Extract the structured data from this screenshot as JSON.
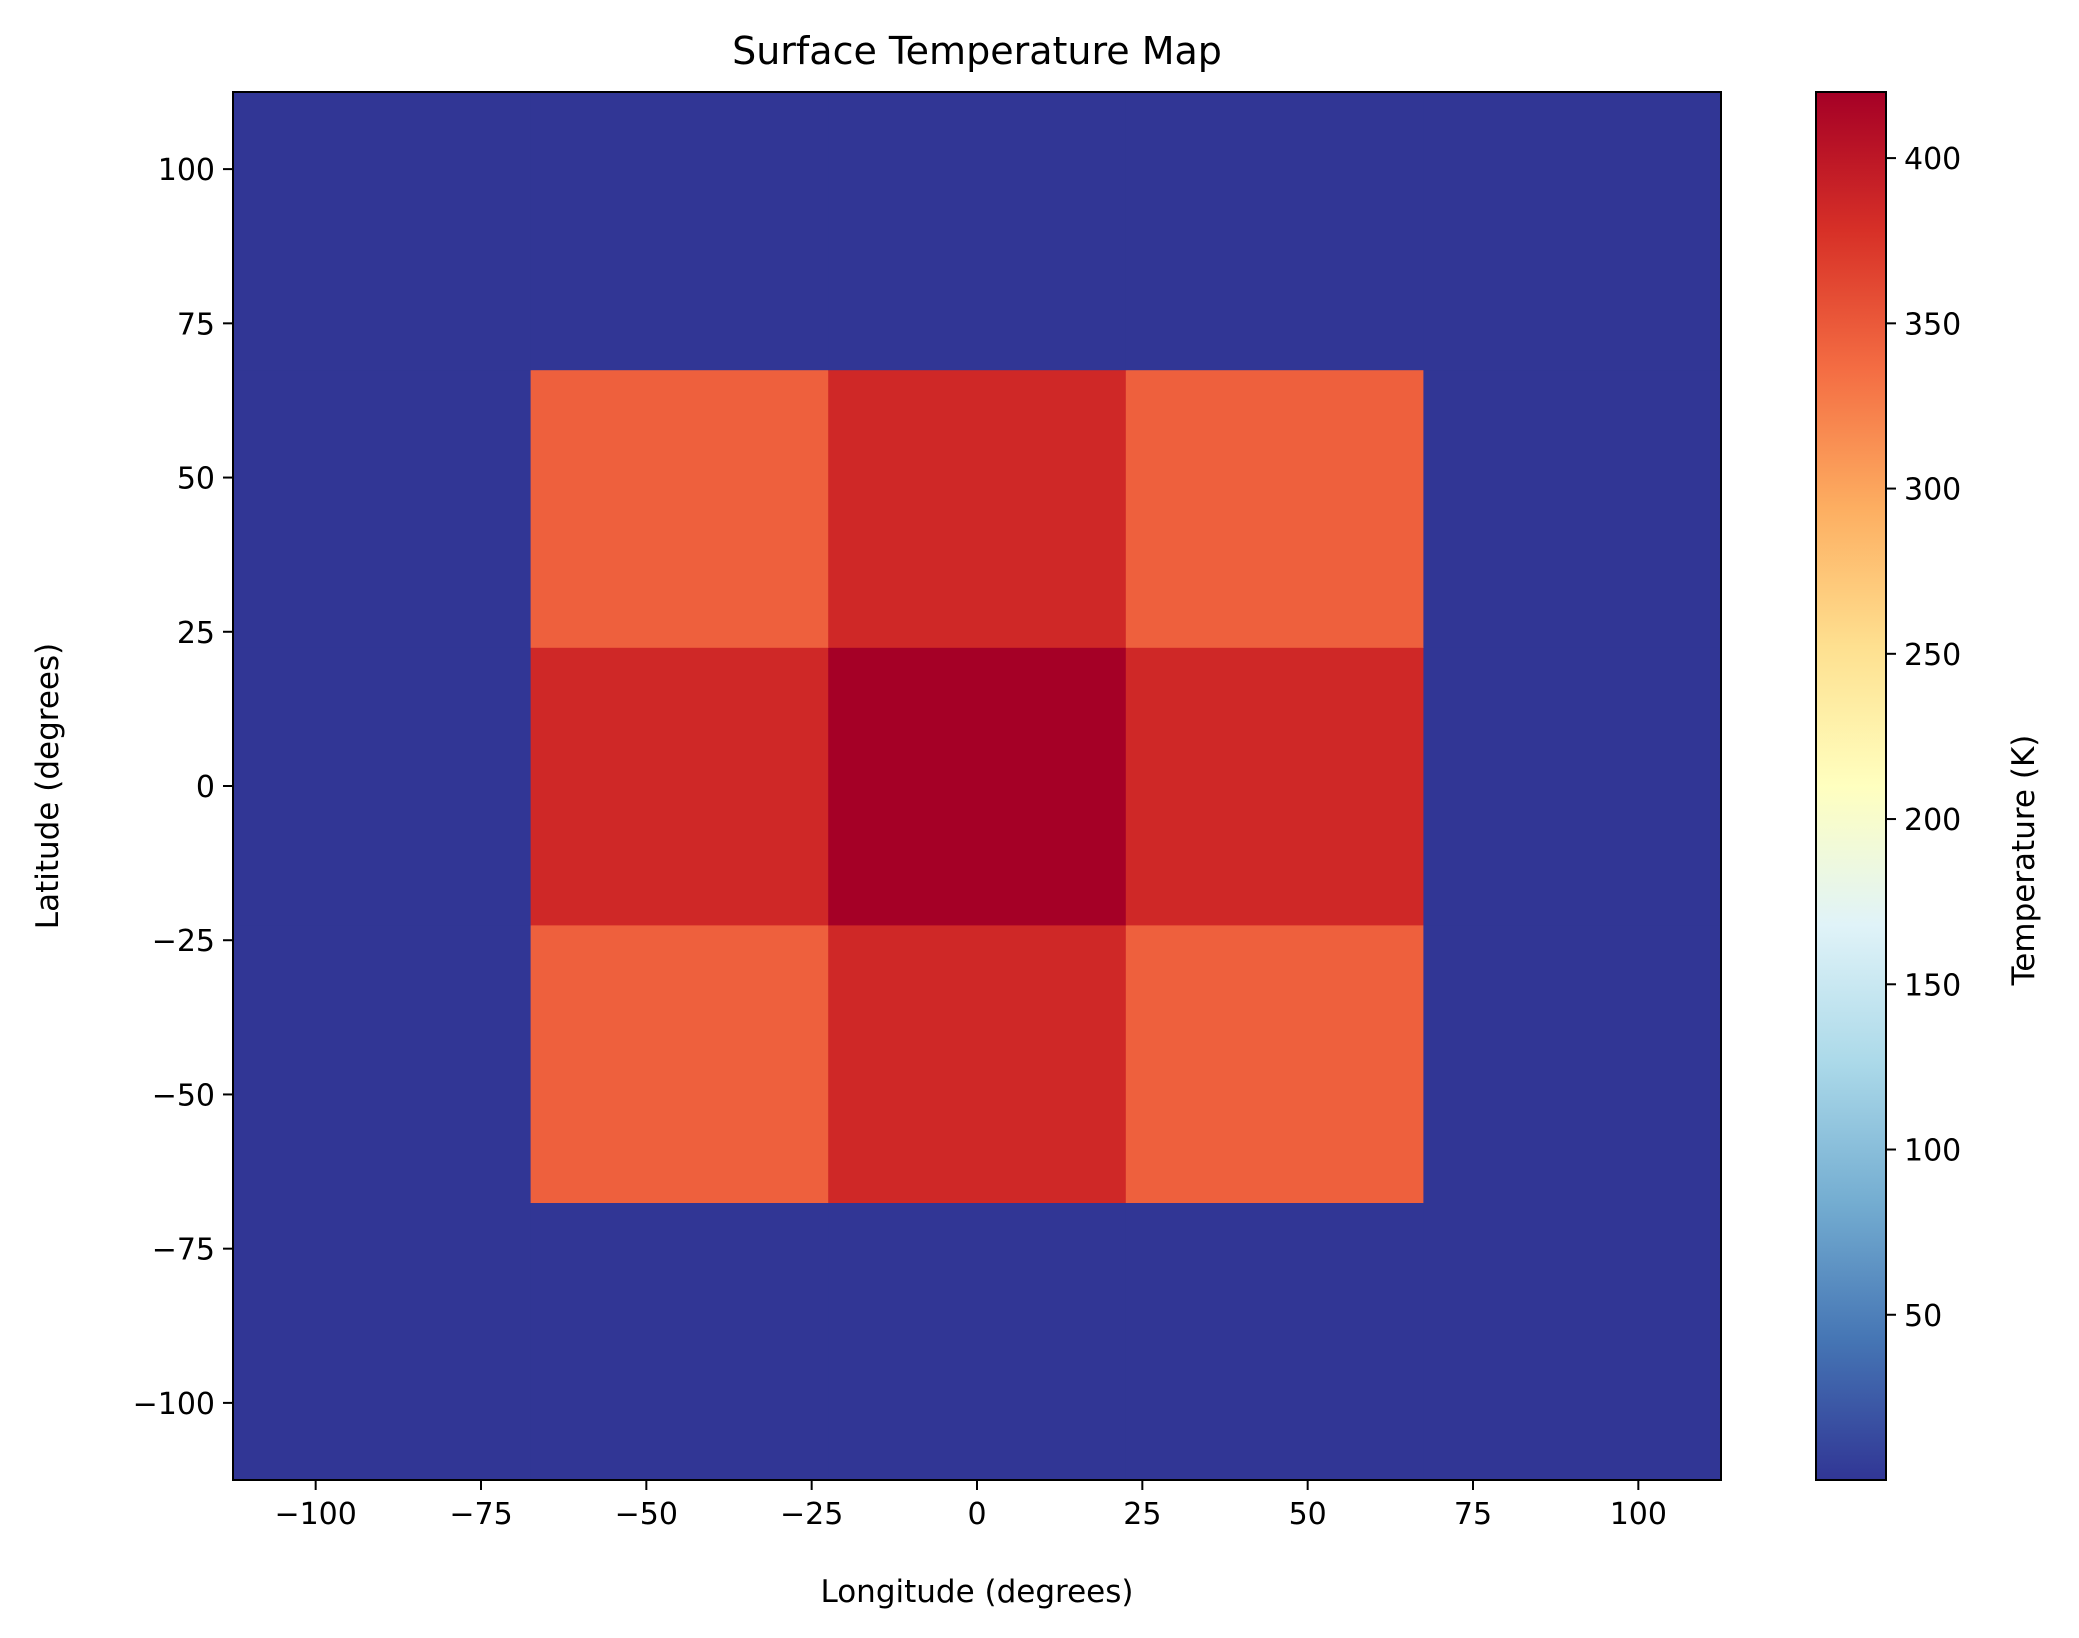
{
  "chart_data": {
    "type": "heatmap",
    "title": "Surface Temperature Map",
    "xlabel": "Longitude (degrees)",
    "ylabel": "Latitude (degrees)",
    "colorbar_label": "Temperature (K)",
    "colormap": "RdYlBu_r",
    "x_centers": [
      -90,
      -45,
      0,
      45,
      90
    ],
    "y_centers": [
      -90,
      -45,
      0,
      45,
      90
    ],
    "cell_size": 45,
    "values": [
      [
        0,
        0,
        0,
        0,
        0
      ],
      [
        0,
        345,
        385,
        345,
        0
      ],
      [
        0,
        385,
        420,
        385,
        0
      ],
      [
        0,
        345,
        385,
        345,
        0
      ],
      [
        0,
        0,
        0,
        0,
        0
      ]
    ],
    "xlim": [
      -112.5,
      112.5
    ],
    "ylim": [
      -112.5,
      112.5
    ],
    "xticks": [
      -100,
      -75,
      -50,
      -25,
      0,
      25,
      50,
      75,
      100
    ],
    "yticks": [
      -100,
      -75,
      -50,
      -25,
      0,
      25,
      50,
      75,
      100
    ],
    "xtick_labels": [
      "−100",
      "−75",
      "−50",
      "−25",
      "0",
      "25",
      "50",
      "75",
      "100"
    ],
    "ytick_labels": [
      "−100",
      "−75",
      "−50",
      "−25",
      "0",
      "25",
      "50",
      "75",
      "100"
    ],
    "clim": [
      0,
      420
    ],
    "colorbar_ticks": [
      50,
      100,
      150,
      200,
      250,
      300,
      350,
      400
    ],
    "colorbar_tick_labels": [
      "50",
      "100",
      "150",
      "200",
      "250",
      "300",
      "350",
      "400"
    ],
    "grid": false
  }
}
